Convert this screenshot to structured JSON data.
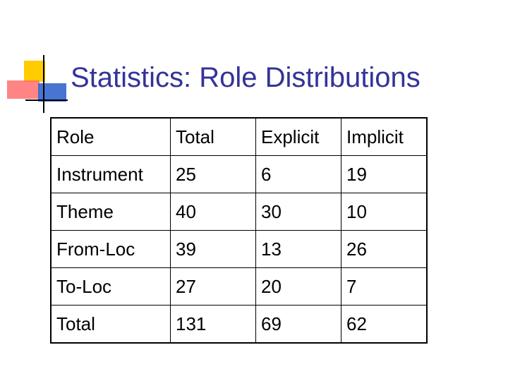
{
  "title": "Statistics: Role Distributions",
  "table": {
    "header": [
      "Role",
      "Total",
      "Explicit",
      "Implicit"
    ],
    "rows": [
      [
        "Instrument",
        25,
        6,
        19
      ],
      [
        "Theme",
        40,
        30,
        10
      ],
      [
        "From-Loc",
        39,
        13,
        26
      ],
      [
        "To-Loc",
        27,
        20,
        7
      ],
      [
        "Total",
        131,
        69,
        62
      ]
    ]
  }
}
